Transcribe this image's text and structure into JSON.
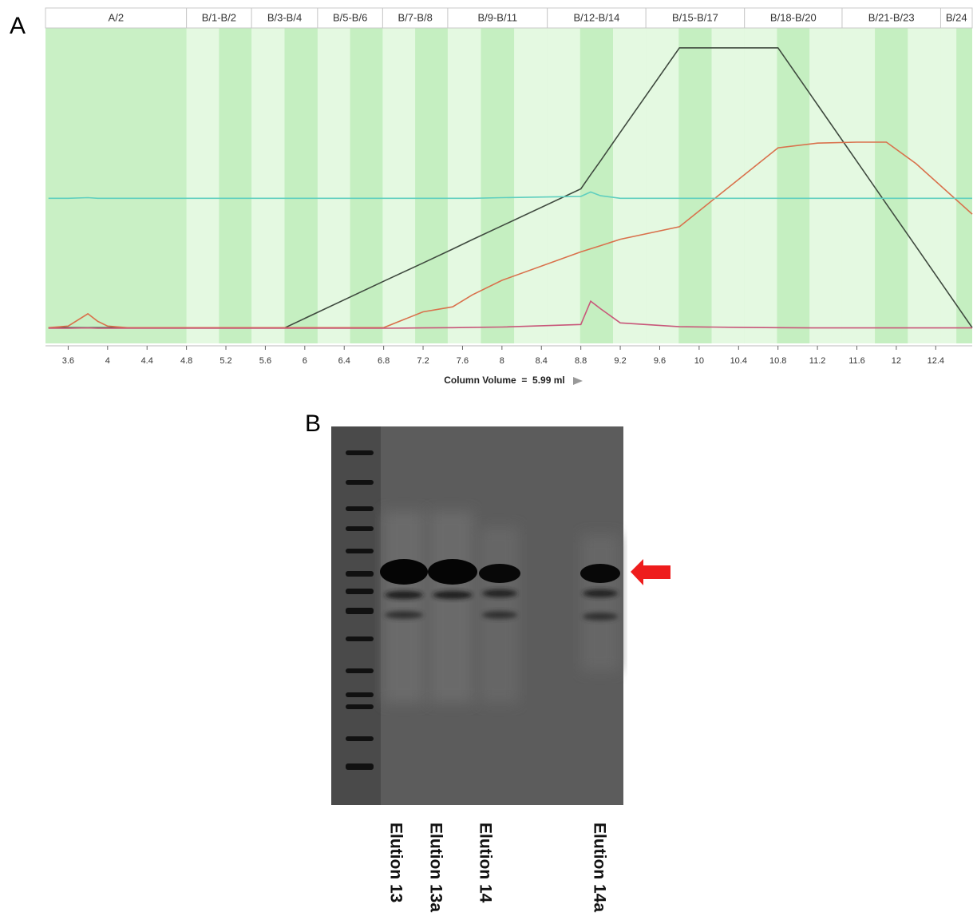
{
  "chart_data": {
    "type": "line",
    "panel_label": "A",
    "annotation": "Column Volume  =  5.99 ml",
    "x": [
      3.4,
      3.6,
      3.8,
      3.9,
      4.0,
      4.2,
      5.8,
      6.8,
      7.2,
      7.5,
      7.7,
      8.0,
      8.8,
      8.9,
      9.0,
      9.2,
      9.8,
      10.4,
      10.8,
      11.2,
      11.6,
      11.9,
      12.2,
      12.77
    ],
    "series": [
      {
        "color": "#3f4a3f",
        "values": [
          5,
          5,
          5,
          5,
          5,
          5,
          5,
          19.7,
          25.5,
          29.9,
          32.9,
          37.3,
          49,
          53.5,
          57.9,
          66.9,
          93.7,
          93.7,
          93.7,
          75.7,
          57.7,
          44.2,
          30.7,
          5
        ]
      },
      {
        "color": "#d9714c",
        "values": [
          5,
          5.5,
          9.4,
          7,
          5.5,
          5,
          5,
          5,
          10,
          11.6,
          15.4,
          20,
          29,
          30,
          31,
          33,
          37,
          52,
          62,
          63.5,
          63.8,
          63.8,
          57,
          41
        ]
      },
      {
        "color": "#5fcfbf",
        "values": [
          46,
          46,
          46.2,
          46,
          46,
          46,
          46,
          46,
          46,
          46,
          46,
          46.2,
          46.6,
          48,
          46.8,
          46,
          46,
          46,
          46,
          46,
          46,
          46,
          46,
          46
        ]
      },
      {
        "color": "#c8577a",
        "values": [
          4.8,
          4.8,
          4.9,
          4.8,
          4.8,
          4.8,
          4.8,
          4.8,
          4.9,
          5,
          5.1,
          5.2,
          6,
          13.4,
          11,
          6.5,
          5.3,
          5.1,
          5,
          4.9,
          4.9,
          4.9,
          4.9,
          4.9
        ]
      }
    ],
    "fraction_labels": [
      "A/2",
      "B/1-B/2",
      "B/3-B/4",
      "B/5-B/6",
      "B/7-B/8",
      "B/9-B/11",
      "B/12-B/14",
      "B/15-B/17",
      "B/18-B/20",
      "B/21-B/23",
      "B/24"
    ],
    "fraction_starts": [
      3.37,
      4.8,
      5.46,
      6.13,
      6.79,
      7.45,
      8.46,
      9.46,
      10.46,
      11.45,
      12.45
    ],
    "xlim": [
      3.37,
      12.77
    ],
    "ylim": [
      0,
      100
    ],
    "xticks": [
      3.6,
      4,
      4.4,
      4.8,
      5.2,
      5.6,
      6,
      6.4,
      6.8,
      7.2,
      7.6,
      8,
      8.4,
      8.8,
      9.2,
      9.6,
      10,
      10.4,
      10.8,
      11.2,
      11.6,
      12,
      12.4
    ]
  },
  "gel": {
    "panel_label": "B",
    "lanes": [
      "Elution 13",
      "Elution 13a",
      "Elution 14",
      "Elution 14a"
    ]
  }
}
